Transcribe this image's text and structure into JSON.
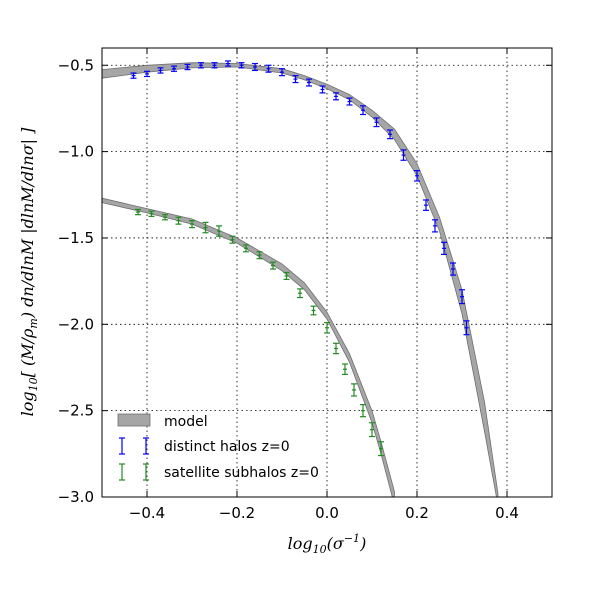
{
  "chart_data": {
    "type": "scatter",
    "xlabel": "log10(σ^-1)",
    "ylabel": "log10[ (M/ρm) dn/dlnM |dlnM/dlnσ| ]",
    "xlim": [
      -0.5,
      0.5
    ],
    "ylim": [
      -3.0,
      -0.4
    ],
    "xticks": [
      -0.4,
      -0.2,
      0.0,
      0.2,
      0.4
    ],
    "xtick_labels": [
      "−0.4",
      "−0.2",
      "0.0",
      "0.2",
      "0.4"
    ],
    "yticks": [
      -0.5,
      -1.0,
      -1.5,
      -2.0,
      -2.5,
      -3.0
    ],
    "ytick_labels": [
      "−0.5",
      "−1.0",
      "−1.5",
      "−2.0",
      "−2.5",
      "−3.0"
    ],
    "grid": true,
    "legend_position": "bottom-left",
    "colors": {
      "distinct": "#0000ff",
      "satellite": "#228b22",
      "model": "#999999"
    },
    "model_bands": [
      {
        "name": "model",
        "x": [
          -0.5,
          -0.4,
          -0.3,
          -0.2,
          -0.1,
          -0.05,
          0.0,
          0.05,
          0.1,
          0.15,
          0.2,
          0.25,
          0.3,
          0.35,
          0.38
        ],
        "upper": [
          -0.525,
          -0.5,
          -0.485,
          -0.49,
          -0.52,
          -0.56,
          -0.61,
          -0.67,
          -0.76,
          -0.87,
          -1.07,
          -1.38,
          -1.8,
          -2.45,
          -2.98
        ],
        "lower": [
          -0.575,
          -0.54,
          -0.515,
          -0.51,
          -0.545,
          -0.585,
          -0.635,
          -0.7,
          -0.8,
          -0.93,
          -1.14,
          -1.46,
          -1.94,
          -2.62,
          -3.05
        ]
      },
      {
        "name": "model",
        "x": [
          -0.5,
          -0.4,
          -0.3,
          -0.2,
          -0.1,
          -0.05,
          0.0,
          0.05,
          0.1,
          0.12,
          0.15
        ],
        "upper": [
          -1.27,
          -1.33,
          -1.39,
          -1.5,
          -1.65,
          -1.76,
          -1.93,
          -2.17,
          -2.5,
          -2.68,
          -2.97
        ],
        "lower": [
          -1.295,
          -1.355,
          -1.42,
          -1.53,
          -1.69,
          -1.8,
          -1.97,
          -2.22,
          -2.57,
          -2.75,
          -3.05
        ]
      }
    ],
    "legend": [
      "model",
      "distinct halos z=0",
      "satellite subhalos z=0"
    ],
    "series": [
      {
        "name": "distinct halos z=0",
        "x": [
          -0.43,
          -0.4,
          -0.37,
          -0.34,
          -0.31,
          -0.28,
          -0.25,
          -0.22,
          -0.19,
          -0.16,
          -0.13,
          -0.1,
          -0.07,
          -0.04,
          -0.01,
          0.02,
          0.05,
          0.08,
          0.11,
          0.14,
          0.17,
          0.2,
          0.22,
          0.24,
          0.26,
          0.28,
          0.3,
          0.31
        ],
        "y": [
          -0.56,
          -0.55,
          -0.53,
          -0.52,
          -0.51,
          -0.5,
          -0.5,
          -0.49,
          -0.5,
          -0.51,
          -0.52,
          -0.54,
          -0.58,
          -0.6,
          -0.64,
          -0.68,
          -0.71,
          -0.76,
          -0.83,
          -0.9,
          -1.02,
          -1.14,
          -1.31,
          -1.43,
          -1.56,
          -1.68,
          -1.84,
          -2.02
        ],
        "err": [
          0.015,
          0.015,
          0.015,
          0.015,
          0.015,
          0.015,
          0.015,
          0.015,
          0.015,
          0.02,
          0.02,
          0.02,
          0.02,
          0.02,
          0.02,
          0.02,
          0.02,
          0.025,
          0.025,
          0.025,
          0.03,
          0.03,
          0.03,
          0.035,
          0.035,
          0.035,
          0.04,
          0.04
        ]
      },
      {
        "name": "satellite subhalos z=0",
        "x": [
          -0.42,
          -0.39,
          -0.36,
          -0.33,
          -0.3,
          -0.27,
          -0.24,
          -0.21,
          -0.18,
          -0.15,
          -0.12,
          -0.09,
          -0.06,
          -0.03,
          0.0,
          0.02,
          0.04,
          0.06,
          0.08,
          0.1,
          0.12
        ],
        "y": [
          -1.35,
          -1.36,
          -1.38,
          -1.4,
          -1.42,
          -1.44,
          -1.46,
          -1.51,
          -1.56,
          -1.6,
          -1.66,
          -1.72,
          -1.82,
          -1.92,
          -2.02,
          -2.14,
          -2.26,
          -2.38,
          -2.5,
          -2.61,
          -2.72
        ],
        "err": [
          0.015,
          0.015,
          0.015,
          0.02,
          0.02,
          0.03,
          0.03,
          0.02,
          0.02,
          0.02,
          0.02,
          0.02,
          0.025,
          0.025,
          0.03,
          0.03,
          0.03,
          0.035,
          0.035,
          0.04,
          0.04
        ]
      }
    ]
  }
}
